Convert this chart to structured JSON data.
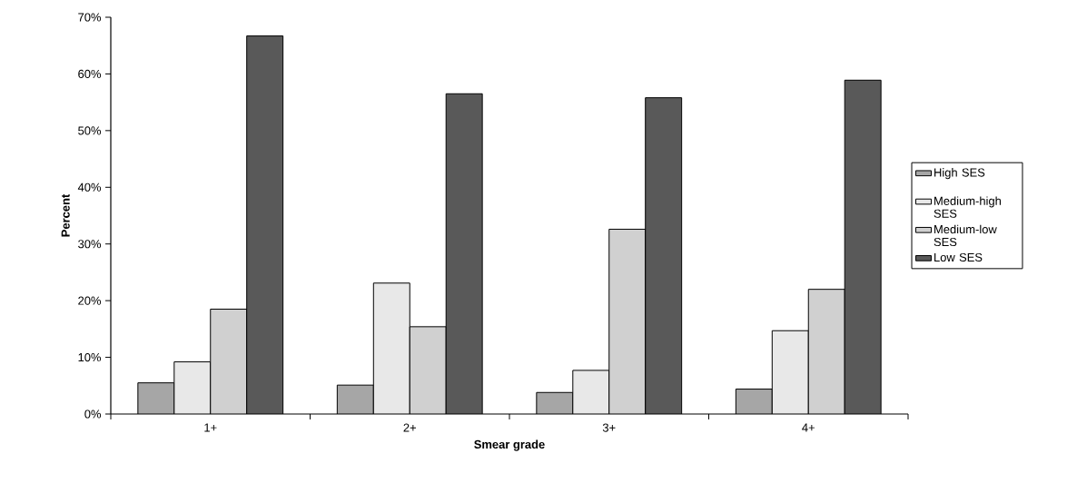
{
  "chart_data": {
    "type": "bar",
    "xlabel": "Smear grade",
    "ylabel": "Percent",
    "categories": [
      "1+",
      "2+",
      "3+",
      "4+"
    ],
    "series": [
      {
        "name": "High SES",
        "color": "#a6a6a6",
        "values": [
          5.5,
          5.1,
          3.8,
          4.4
        ]
      },
      {
        "name": "Medium-high SES",
        "color": "#e8e8e8",
        "values": [
          9.2,
          23.1,
          7.7,
          14.7
        ]
      },
      {
        "name": "Medium-low SES",
        "color": "#d0d0d0",
        "values": [
          18.5,
          15.4,
          32.6,
          22.0
        ]
      },
      {
        "name": "Low SES",
        "color": "#595959",
        "values": [
          66.7,
          56.5,
          55.8,
          58.9
        ]
      }
    ],
    "ylim": [
      0,
      70
    ],
    "yticks": [
      {
        "value": 0,
        "label": "0%"
      },
      {
        "value": 10,
        "label": "10%"
      },
      {
        "value": 20,
        "label": "20%"
      },
      {
        "value": 30,
        "label": "30%"
      },
      {
        "value": 40,
        "label": "40%"
      },
      {
        "value": 50,
        "label": "50%"
      },
      {
        "value": 60,
        "label": "60%"
      },
      {
        "value": 70,
        "label": "70%"
      }
    ],
    "legend": "right"
  }
}
